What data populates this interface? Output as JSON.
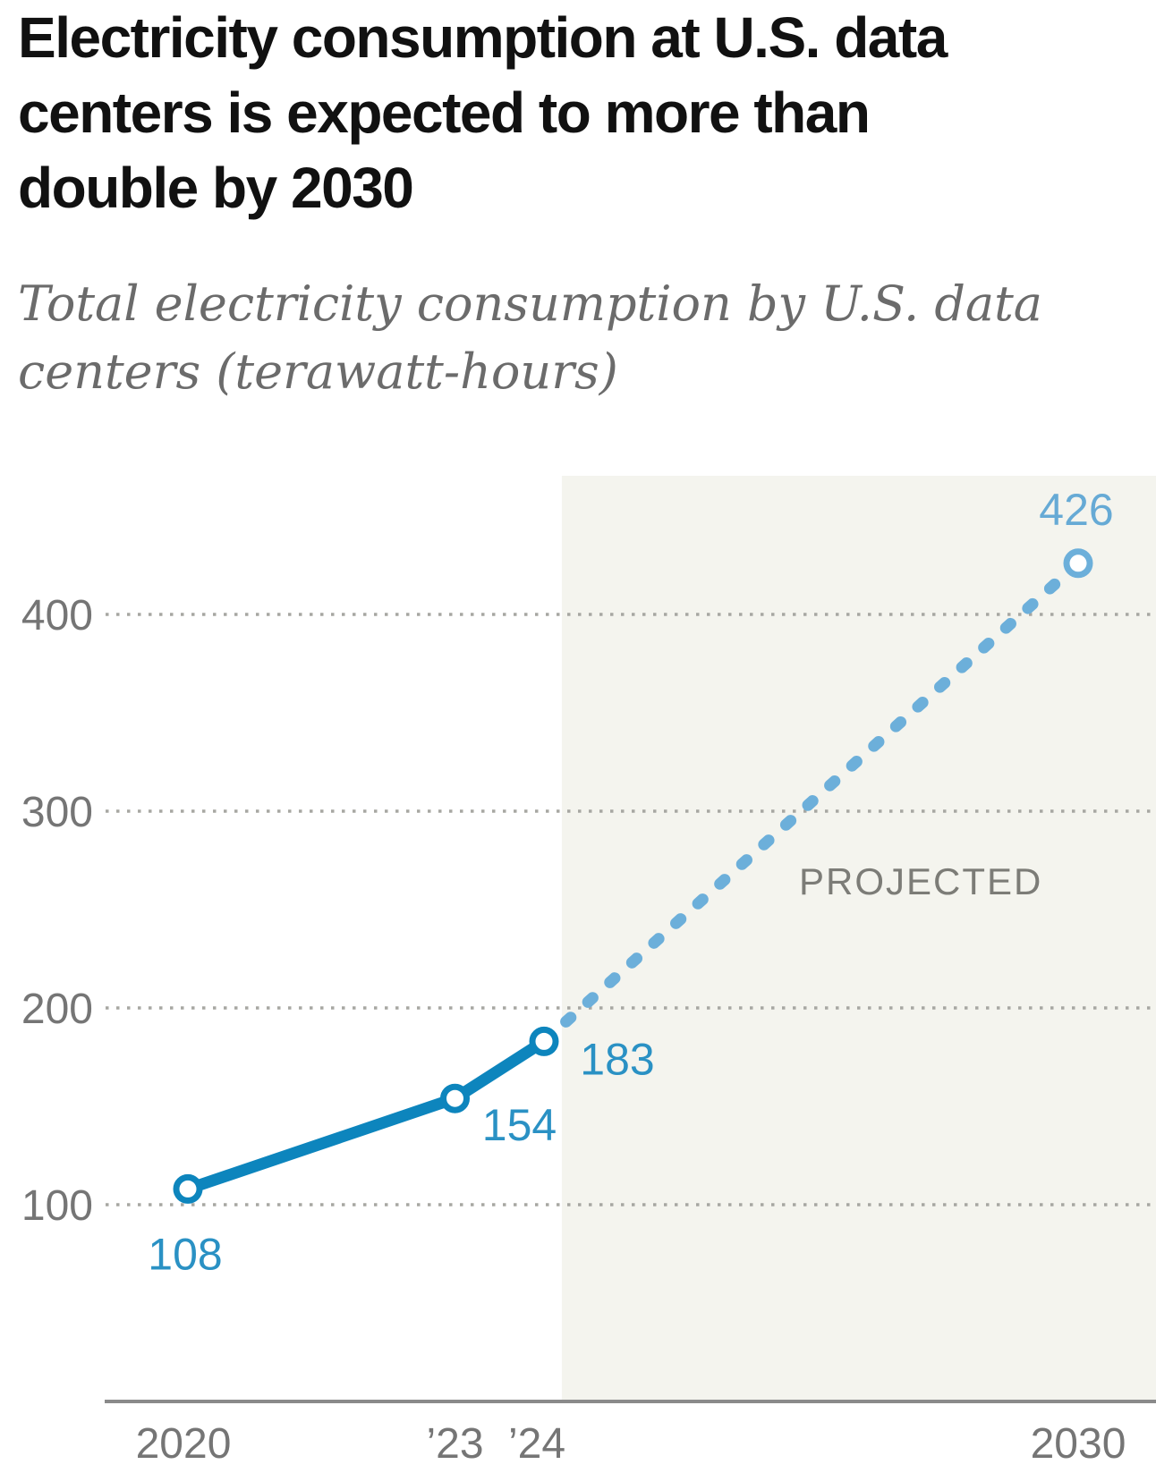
{
  "header": {
    "title": "Electricity consumption at U.S. data centers is expected to more than double by 2030",
    "title_lines": [
      "Electricity consumption at U.S. data",
      "centers is expected to more than",
      "double by 2030"
    ],
    "subtitle": "Total electricity consumption by U.S. data centers (terawatt-hours)",
    "subtitle_lines": [
      "Total electricity consumption by U.S. data",
      "centers (terawatt-hours)"
    ]
  },
  "chart_data": {
    "type": "line",
    "title": "Electricity consumption at U.S. data centers is expected to more than double by 2030",
    "subtitle": "Total electricity consumption by U.S. data centers (terawatt-hours)",
    "unit": "terawatt-hours",
    "x": [
      2020,
      2023,
      2024,
      2030
    ],
    "series": [
      {
        "name": "actual",
        "style": "solid",
        "points": [
          {
            "x": 2020,
            "y": 108
          },
          {
            "x": 2023,
            "y": 154
          },
          {
            "x": 2024,
            "y": 183
          }
        ]
      },
      {
        "name": "projected",
        "style": "dashed",
        "points": [
          {
            "x": 2024,
            "y": 183
          },
          {
            "x": 2030,
            "y": 426
          }
        ]
      }
    ],
    "point_labels": [
      {
        "x": 2020,
        "value": 108,
        "text": "108",
        "projected": false
      },
      {
        "x": 2023,
        "value": 154,
        "text": "154",
        "projected": false
      },
      {
        "x": 2024,
        "value": 183,
        "text": "183",
        "projected": false
      },
      {
        "x": 2030,
        "value": 426,
        "text": "426",
        "projected": true
      }
    ],
    "y_ticks": [
      {
        "value": 100,
        "label": "100"
      },
      {
        "value": 200,
        "label": "200"
      },
      {
        "value": 300,
        "label": "300"
      },
      {
        "value": 400,
        "label": "400"
      }
    ],
    "x_tick_labels": [
      {
        "x": 2020,
        "label": "2020"
      },
      {
        "x": 2023,
        "label": "’23"
      },
      {
        "x": 2024,
        "label": "’24"
      },
      {
        "x": 2030,
        "label": "2030"
      }
    ],
    "ylim": [
      0,
      470
    ],
    "xlim": [
      2019,
      2030.9
    ],
    "grid": "dotted-horizontal",
    "legend": "none",
    "annotation": "PROJECTED",
    "projection_region_start": 2024.2,
    "colors": {
      "line_actual": "#0d85bd",
      "line_projected": "#6cafda",
      "label_actual": "#2a91c4",
      "label_projected": "#66aad5",
      "marker_fill": "#ffffff",
      "grid": "#a7a7a2",
      "axis": "#8a8a8a",
      "tick_text": "#757575",
      "annotation_text": "#7c7c77",
      "projection_region": "#f4f4ee",
      "title_text": "#111111",
      "subtitle_text": "#6b6b6b"
    }
  }
}
